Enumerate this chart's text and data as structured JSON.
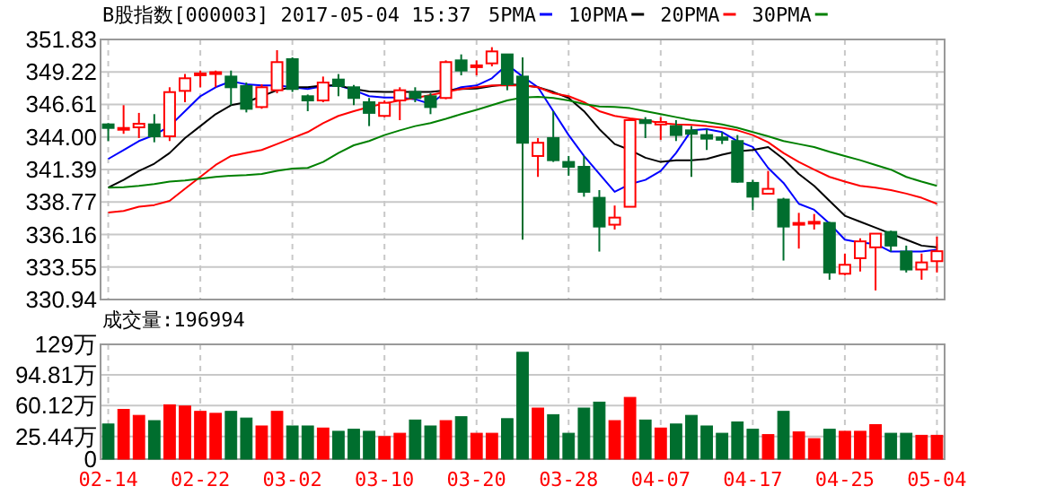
{
  "chart_data": [
    {
      "type": "candlestick",
      "title": "B股指数[000003] 2017-05-04 15:37",
      "legend": "top",
      "grid": true,
      "tick_labels": "y",
      "categories": [
        null,
        null,
        null,
        null,
        null,
        null,
        null,
        null,
        null,
        null,
        null,
        null,
        null,
        null,
        null,
        null,
        null,
        null,
        null,
        null,
        null,
        null,
        null,
        null,
        null,
        null,
        null,
        null,
        null,
        null,
        null,
        null,
        null,
        null,
        null,
        null,
        null,
        null,
        null,
        null,
        null,
        null,
        null,
        null,
        null,
        null,
        null,
        null,
        null,
        null,
        null,
        null,
        null,
        null,
        null
      ],
      "ylim": [
        330.94,
        351.83
      ],
      "yticks": [
        330.94,
        333.55,
        336.16,
        338.77,
        341.39,
        {
          "value": 344,
          "label": "344.00"
        },
        346.61,
        349.22,
        351.83
      ],
      "ohlc": [
        [
          345.01,
          345.11,
          343.67,
          344.72
        ],
        [
          344.58,
          346.55,
          344.25,
          344.72
        ],
        [
          344.77,
          345.93,
          343.91,
          345.06
        ],
        [
          345.01,
          345.83,
          343.57,
          344.05
        ],
        [
          344.05,
          347.99,
          343.67,
          347.6
        ],
        [
          347.7,
          349.05,
          346.79,
          348.71
        ],
        [
          349.0,
          349.33,
          347.99,
          349.1
        ],
        [
          349.1,
          349.33,
          347.99,
          349.2
        ],
        [
          348.85,
          349.33,
          346.55,
          347.99
        ],
        [
          348.09,
          348.37,
          345.97,
          346.26
        ],
        [
          346.4,
          348.23,
          346.26,
          347.99
        ],
        [
          347.75,
          350.97,
          347.51,
          350.01
        ],
        [
          350.25,
          350.39,
          347.61,
          347.85
        ],
        [
          347.27,
          347.41,
          346.07,
          346.93
        ],
        [
          346.93,
          348.85,
          346.79,
          348.37
        ],
        [
          348.61,
          349.05,
          347.27,
          348.09
        ],
        [
          347.99,
          348.18,
          346.55,
          347.13
        ],
        [
          346.79,
          347.13,
          344.87,
          345.93
        ],
        [
          345.69,
          346.93,
          345.59,
          346.74
        ],
        [
          346.93,
          347.99,
          345.35,
          347.75
        ],
        [
          347.61,
          347.99,
          346.79,
          347.13
        ],
        [
          347.27,
          347.51,
          345.83,
          346.4
        ],
        [
          347.13,
          350.15,
          347.03,
          350.01
        ],
        [
          350.15,
          350.63,
          348.95,
          349.33
        ],
        [
          349.65,
          350.15,
          348.95,
          349.75
        ],
        [
          349.91,
          351.21,
          349.67,
          350.87
        ],
        [
          350.63,
          350.63,
          347.75,
          348.23
        ],
        [
          348.85,
          350.39,
          335.75,
          343.53
        ],
        [
          342.47,
          343.91,
          340.79,
          343.53
        ],
        [
          343.91,
          346.07,
          341.99,
          342.13
        ],
        [
          341.99,
          342.47,
          340.88,
          341.6
        ],
        [
          341.6,
          342.47,
          339.2,
          339.59
        ],
        [
          339.11,
          339.73,
          334.79,
          336.8
        ],
        [
          336.95,
          338.49,
          336.56,
          337.52
        ],
        [
          338.39,
          345.5,
          338.39,
          345.35
        ],
        [
          345.35,
          345.59,
          343.91,
          345.11
        ],
        [
          345.0,
          345.59,
          343.77,
          345.2
        ],
        [
          344.87,
          345.35,
          343.67,
          344.15
        ],
        [
          344.53,
          344.87,
          340.79,
          344.25
        ],
        [
          344.15,
          344.63,
          342.95,
          343.86
        ],
        [
          343.96,
          344.39,
          343.43,
          343.77
        ],
        [
          343.67,
          344.15,
          340.31,
          340.4
        ],
        [
          340.31,
          340.55,
          338.11,
          339.2
        ],
        [
          339.44,
          341.27,
          339.44,
          339.83
        ],
        [
          338.97,
          339.11,
          334.07,
          336.8
        ],
        [
          336.95,
          337.9,
          335.03,
          337.09
        ],
        [
          337.04,
          337.81,
          336.56,
          337.18
        ],
        [
          337.09,
          337.18,
          332.53,
          333.11
        ],
        [
          333.01,
          334.63,
          332.87,
          333.73
        ],
        [
          334.26,
          335.85,
          333.2,
          335.61
        ],
        [
          335.13,
          336.23,
          331.67,
          336.23
        ],
        [
          336.37,
          336.47,
          334.79,
          335.27
        ],
        [
          334.79,
          335.27,
          333.11,
          333.35
        ],
        [
          333.35,
          334.63,
          332.53,
          333.92
        ],
        [
          334.02,
          335.99,
          333.11,
          334.82
        ]
      ],
      "colors": [
        "#006e2e",
        "#ff0000",
        "#ff0000",
        "#006e2e",
        "#ff0000",
        "#ff0000",
        "#ff0000",
        "#ff0000",
        "#006e2e",
        "#006e2e",
        "#ff0000",
        "#ff0000",
        "#006e2e",
        "#006e2e",
        "#ff0000",
        "#006e2e",
        "#006e2e",
        "#006e2e",
        "#ff0000",
        "#ff0000",
        "#006e2e",
        "#006e2e",
        "#ff0000",
        "#006e2e",
        "#ff0000",
        "#ff0000",
        "#006e2e",
        "#006e2e",
        "#ff0000",
        "#006e2e",
        "#006e2e",
        "#006e2e",
        "#006e2e",
        "#ff0000",
        "#ff0000",
        "#006e2e",
        "#ff0000",
        "#006e2e",
        "#006e2e",
        "#006e2e",
        "#006e2e",
        "#006e2e",
        "#006e2e",
        "#ff0000",
        "#006e2e",
        "#ff0000",
        "#ff0000",
        "#006e2e",
        "#ff0000",
        "#ff0000",
        "#ff0000",
        "#006e2e",
        "#006e2e",
        "#ff0000",
        "#ff0000"
      ],
      "series": [
        {
          "name": "5PMA",
          "type": "line",
          "color": "#0000ff",
          "values": [
            342.23,
            342.95,
            343.67,
            344.15,
            344.87,
            346.07,
            347.27,
            347.99,
            348.47,
            348.23,
            348.13,
            348.13,
            347.99,
            347.85,
            348.09,
            348.13,
            347.75,
            347.27,
            347.17,
            347.17,
            347.03,
            346.65,
            347.61,
            347.99,
            348.13,
            348.71,
            349.81,
            348.85,
            347.99,
            346.07,
            344.15,
            342.47,
            341.03,
            339.59,
            340.21,
            340.55,
            341.27,
            342.71,
            344.53,
            344.63,
            344.39,
            343.67,
            343.19,
            341.51,
            340.31,
            338.63,
            338.15,
            337.05,
            335.75,
            335.51,
            335.41,
            334.79,
            334.79,
            334.79,
            334.93
          ]
        },
        {
          "name": "10PMA",
          "type": "line",
          "color": "#000000",
          "values": [
            339.93,
            340.55,
            341.27,
            341.85,
            342.71,
            343.91,
            344.87,
            345.83,
            346.55,
            346.79,
            347.27,
            347.75,
            347.99,
            347.99,
            348.13,
            348.13,
            347.85,
            347.65,
            347.61,
            347.61,
            347.61,
            347.61,
            347.75,
            347.85,
            347.89,
            348.09,
            348.23,
            348.18,
            347.99,
            347.61,
            347.13,
            346.07,
            344.63,
            343.43,
            342.95,
            342.33,
            341.99,
            342.13,
            342.13,
            342.23,
            342.57,
            342.85,
            342.95,
            343.19,
            342.23,
            341.03,
            340.07,
            338.87,
            337.67,
            337.19,
            336.71,
            336.23,
            335.75,
            335.27,
            335.13
          ]
        },
        {
          "name": "20PMA",
          "type": "line",
          "color": "#ff0000",
          "values": [
            337.93,
            338.05,
            338.39,
            338.53,
            338.87,
            339.83,
            340.79,
            341.75,
            342.47,
            342.71,
            342.95,
            343.43,
            343.91,
            344.39,
            345.11,
            345.69,
            346.07,
            346.41,
            346.69,
            346.93,
            347.13,
            347.37,
            347.61,
            347.85,
            347.99,
            348.13,
            348.13,
            348.13,
            347.99,
            347.51,
            347.27,
            346.79,
            346.07,
            345.69,
            345.49,
            345.35,
            345.11,
            345.01,
            344.97,
            344.87,
            344.73,
            344.53,
            344.15,
            343.57,
            342.71,
            341.99,
            341.37,
            340.79,
            340.41,
            340.07,
            339.93,
            339.73,
            339.45,
            339.11,
            338.63
          ]
        },
        {
          "name": "30PMA",
          "type": "line",
          "color": "#008000",
          "values": [
            339.93,
            339.97,
            340.07,
            340.21,
            340.41,
            340.5,
            340.65,
            340.79,
            340.89,
            340.93,
            341.03,
            341.27,
            341.46,
            341.51,
            341.99,
            342.71,
            343.33,
            343.67,
            344.15,
            344.53,
            344.87,
            345.11,
            345.45,
            345.83,
            346.17,
            346.55,
            346.93,
            347.17,
            347.22,
            347.13,
            346.93,
            346.65,
            346.45,
            346.41,
            346.31,
            346.07,
            345.83,
            345.59,
            345.35,
            345.21,
            345.01,
            344.73,
            344.39,
            344.05,
            343.67,
            343.43,
            343.19,
            342.81,
            342.47,
            342.13,
            341.75,
            341.37,
            340.79,
            340.41,
            340.07
          ]
        }
      ]
    },
    {
      "type": "bar",
      "title": "成交量:196994",
      "grid": true,
      "categories": [
        "02-14",
        null,
        null,
        null,
        null,
        null,
        "02-22",
        null,
        null,
        null,
        null,
        null,
        "03-02",
        null,
        null,
        null,
        null,
        null,
        "03-10",
        null,
        null,
        null,
        null,
        null,
        "03-20",
        null,
        null,
        null,
        null,
        null,
        "03-28",
        null,
        null,
        null,
        null,
        null,
        "04-07",
        null,
        null,
        null,
        null,
        null,
        "04-17",
        null,
        null,
        null,
        null,
        null,
        "04-25",
        null,
        null,
        null,
        null,
        null,
        "05-04"
      ],
      "ylim": [
        0,
        129
      ],
      "yticks": [
        0,
        {
          "value": 25.44,
          "label": "25.44万"
        },
        {
          "value": 60.12,
          "label": "60.12万"
        },
        {
          "value": 94.81,
          "label": "94.81万"
        },
        {
          "value": 129,
          "label": "129万"
        }
      ],
      "values": [
        39.5,
        55.9,
        49.2,
        43.3,
        61.1,
        59.7,
        53.7,
        51.5,
        53.7,
        46.2,
        37.3,
        53.7,
        37.3,
        37.3,
        35.0,
        31.3,
        33.6,
        31.3,
        25.4,
        29.1,
        44.0,
        37.3,
        43.3,
        47.7,
        29.1,
        29.1,
        45.5,
        120.1,
        57.4,
        50.0,
        29.1,
        57.4,
        64.1,
        43.3,
        69.4,
        44.0,
        35.0,
        39.5,
        49.2,
        37.3,
        29.1,
        41.8,
        33.6,
        27.6,
        53.7,
        30.6,
        23.1,
        33.6,
        31.3,
        31.3,
        38.8,
        29.1,
        29.1,
        26.8,
        26.8
      ],
      "colors": [
        "#006e2e",
        "#ff0000",
        "#ff0000",
        "#006e2e",
        "#ff0000",
        "#ff0000",
        "#ff0000",
        "#ff0000",
        "#006e2e",
        "#006e2e",
        "#ff0000",
        "#ff0000",
        "#006e2e",
        "#006e2e",
        "#ff0000",
        "#006e2e",
        "#006e2e",
        "#006e2e",
        "#ff0000",
        "#ff0000",
        "#006e2e",
        "#006e2e",
        "#ff0000",
        "#006e2e",
        "#ff0000",
        "#ff0000",
        "#006e2e",
        "#006e2e",
        "#ff0000",
        "#006e2e",
        "#006e2e",
        "#006e2e",
        "#006e2e",
        "#ff0000",
        "#ff0000",
        "#006e2e",
        "#ff0000",
        "#006e2e",
        "#006e2e",
        "#006e2e",
        "#006e2e",
        "#006e2e",
        "#006e2e",
        "#ff0000",
        "#006e2e",
        "#ff0000",
        "#ff0000",
        "#006e2e",
        "#ff0000",
        "#ff0000",
        "#ff0000",
        "#006e2e",
        "#006e2e",
        "#ff0000",
        "#ff0000"
      ]
    }
  ]
}
